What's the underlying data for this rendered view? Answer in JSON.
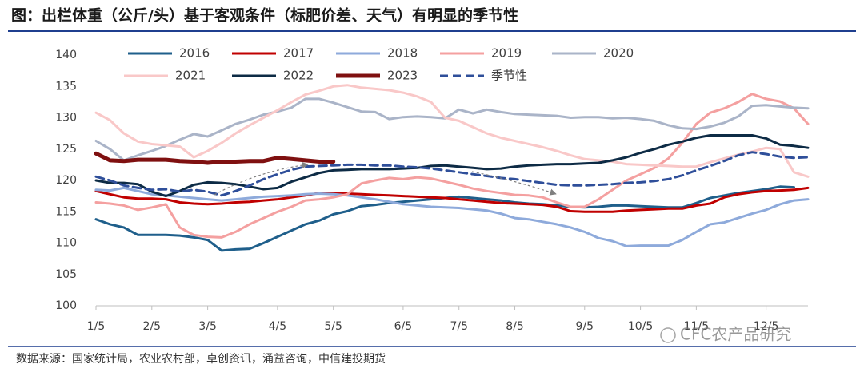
{
  "chart_data": {
    "type": "line",
    "title": "图：出栏体重（公斤/头）基于客观条件（标肥价差、天气）有明显的季节性",
    "source": "数据来源：国家统计局，农业农村部，卓创资讯，涌益咨询，中信建投期货",
    "watermark": "CFC农产品研究",
    "categories": [
      "1/5",
      null,
      null,
      null,
      "2/5",
      null,
      null,
      null,
      "3/5",
      null,
      null,
      null,
      null,
      "4/5",
      null,
      null,
      null,
      "5/5",
      null,
      null,
      null,
      null,
      "6/5",
      null,
      null,
      null,
      "7/5",
      null,
      null,
      null,
      "8/5",
      null,
      null,
      null,
      null,
      "9/5",
      null,
      null,
      null,
      "10/5",
      null,
      null,
      null,
      "11/5",
      null,
      null,
      null,
      null,
      "12/5",
      null,
      null,
      null
    ],
    "ylim": [
      100,
      140
    ],
    "yticks": [
      100,
      105,
      110,
      115,
      120,
      125,
      130,
      135,
      140
    ],
    "grid": false,
    "series": [
      {
        "name": "2016",
        "color": "#1f5f8b",
        "line_width": 3,
        "values": [
          113.8,
          113,
          112.5,
          111.3,
          111.3,
          111.3,
          111.2,
          110.9,
          110.5,
          108.8,
          109,
          109.1,
          110,
          111,
          112,
          113,
          113.6,
          114.6,
          115.1,
          115.9,
          116.1,
          116.4,
          116.6,
          116.8,
          117,
          117.2,
          117.4,
          117.2,
          117,
          116.8,
          116.5,
          116.3,
          116.2,
          116,
          115.8,
          115.7,
          115.8,
          116,
          116,
          115.9,
          115.8,
          115.7,
          115.7,
          116.4,
          117.2,
          117.6,
          118,
          118.3,
          118.6,
          119,
          118.9,
          null
        ]
      },
      {
        "name": "2017",
        "color": "#c00000",
        "line_width": 3,
        "values": [
          118.3,
          117.8,
          117.3,
          117.1,
          117.1,
          117,
          116.5,
          116.3,
          116.2,
          116.3,
          116.5,
          116.6,
          116.8,
          117,
          117.3,
          117.6,
          118,
          118,
          117.9,
          117.8,
          117.7,
          117.6,
          117.5,
          117.4,
          117.3,
          117.2,
          117,
          116.8,
          116.6,
          116.4,
          116.3,
          116.2,
          116.1,
          115.8,
          115.1,
          115,
          115,
          115,
          115.2,
          115.3,
          115.4,
          115.5,
          115.5,
          116,
          116.3,
          117.3,
          117.8,
          118.1,
          118.3,
          118.4,
          118.5,
          118.8
        ]
      },
      {
        "name": "2018",
        "color": "#8eaadb",
        "line_width": 3,
        "values": [
          118.5,
          118.4,
          118.8,
          118.3,
          117.8,
          117.6,
          117.4,
          117.2,
          117,
          116.8,
          117,
          117.2,
          117.4,
          117.5,
          117.6,
          117.8,
          117.9,
          117.8,
          117.6,
          117.3,
          117,
          116.6,
          116.2,
          116,
          115.8,
          115.7,
          115.6,
          115.4,
          115.2,
          114.7,
          114,
          113.8,
          113.4,
          113,
          112.5,
          111.8,
          110.8,
          110.3,
          109.5,
          109.6,
          109.6,
          109.6,
          110.5,
          111.8,
          113,
          113.3,
          114,
          114.7,
          115.3,
          116.2,
          116.8,
          117
        ]
      },
      {
        "name": "2019",
        "color": "#f4a0a0",
        "line_width": 3,
        "values": [
          116.5,
          116.3,
          116,
          115.3,
          115.7,
          116.2,
          112.5,
          111.3,
          111,
          110.9,
          111.8,
          113,
          114,
          115,
          115.8,
          116.8,
          117,
          117.3,
          117.8,
          119.5,
          120,
          120.4,
          120.2,
          120.5,
          120.3,
          119.8,
          119.3,
          118.7,
          118.3,
          118,
          117.7,
          117.6,
          117.3,
          116.5,
          115.8,
          115.8,
          117,
          118.5,
          120,
          121,
          122,
          123.5,
          126,
          129,
          130.8,
          131.5,
          132.5,
          133.8,
          133,
          132.6,
          131.5,
          129
        ]
      },
      {
        "name": "2020",
        "color": "#aab4c8",
        "line_width": 3,
        "values": [
          126.3,
          125,
          123.2,
          124,
          124.7,
          125.5,
          126.5,
          127.4,
          127,
          128,
          129,
          129.7,
          130.5,
          131,
          131.6,
          133,
          133,
          132.4,
          131.7,
          131,
          130.9,
          129.8,
          130.1,
          130.2,
          130.1,
          129.9,
          131.3,
          130.7,
          131.3,
          130.9,
          130.6,
          130.5,
          130.4,
          130.3,
          130,
          130.1,
          130.1,
          129.9,
          130,
          129.8,
          129.5,
          128.8,
          128.3,
          128.2,
          128.6,
          129.2,
          130.2,
          131.9,
          132,
          131.8,
          131.6,
          131.5
        ]
      },
      {
        "name": "2021",
        "color": "#f9c8c8",
        "line_width": 3,
        "values": [
          130.8,
          129.6,
          127.5,
          126.2,
          125.8,
          125.6,
          125.4,
          123.7,
          124.7,
          126,
          127.5,
          128.8,
          130,
          131.2,
          132.5,
          133.7,
          134.3,
          135,
          135.2,
          134.8,
          134.6,
          134.4,
          134,
          133.4,
          132.5,
          130,
          129.5,
          128.5,
          127.5,
          126.8,
          126.3,
          125.8,
          125.3,
          124.7,
          124,
          123.4,
          123.2,
          123,
          122.6,
          122.5,
          122.4,
          122.3,
          122.2,
          122.2,
          122.9,
          123.5,
          124.1,
          124.6,
          125.2,
          125,
          121.3,
          120.6
        ]
      },
      {
        "name": "2022",
        "color": "#0d2b45",
        "line_width": 3,
        "values": [
          120,
          119.6,
          119.6,
          119.4,
          118.2,
          117.5,
          118.3,
          119.3,
          119.7,
          119.6,
          119.4,
          119,
          118.6,
          118.8,
          119.8,
          120.5,
          121.2,
          121.6,
          121.7,
          121.8,
          121.8,
          121.8,
          121.9,
          122,
          122.3,
          122.4,
          122.2,
          122,
          121.8,
          121.9,
          122.2,
          122.4,
          122.5,
          122.6,
          122.6,
          122.7,
          122.8,
          123.2,
          123.7,
          124.4,
          125,
          125.7,
          126.2,
          126.8,
          127.2,
          127.2,
          127.2,
          127.2,
          126.7,
          125.7,
          125.5,
          125.2
        ]
      },
      {
        "name": "2023",
        "color": "#7f1010",
        "line_width": 5,
        "values": [
          124.3,
          123.2,
          123.1,
          123.3,
          123.3,
          123.3,
          123.1,
          123,
          122.8,
          123,
          123,
          123.1,
          123.1,
          123.6,
          123.4,
          123.2,
          123,
          123,
          null,
          null,
          null,
          null,
          null,
          null,
          null,
          null,
          null,
          null,
          null,
          null,
          null,
          null,
          null,
          null,
          null,
          null,
          null,
          null,
          null,
          null,
          null,
          null,
          null,
          null,
          null,
          null,
          null,
          null,
          null,
          null,
          null,
          null
        ]
      },
      {
        "name": "季节性",
        "color": "#2f4f9a",
        "line_width": 3,
        "dashed": true,
        "values": [
          120.6,
          120,
          119.2,
          118.8,
          118.5,
          118.6,
          118.2,
          118.5,
          118.2,
          117.6,
          118.3,
          119.2,
          120.2,
          121,
          121.7,
          122.2,
          122.3,
          122.4,
          122.5,
          122.5,
          122.4,
          122.4,
          122.2,
          122.1,
          121.9,
          121.6,
          121.3,
          121,
          120.7,
          120.4,
          120.2,
          119.9,
          119.6,
          119.3,
          119.2,
          119.2,
          119.3,
          119.4,
          119.6,
          119.7,
          119.9,
          120.2,
          120.8,
          121.6,
          122.3,
          123.1,
          124,
          124.5,
          124.2,
          123.8,
          123.6,
          123.7
        ]
      }
    ]
  }
}
